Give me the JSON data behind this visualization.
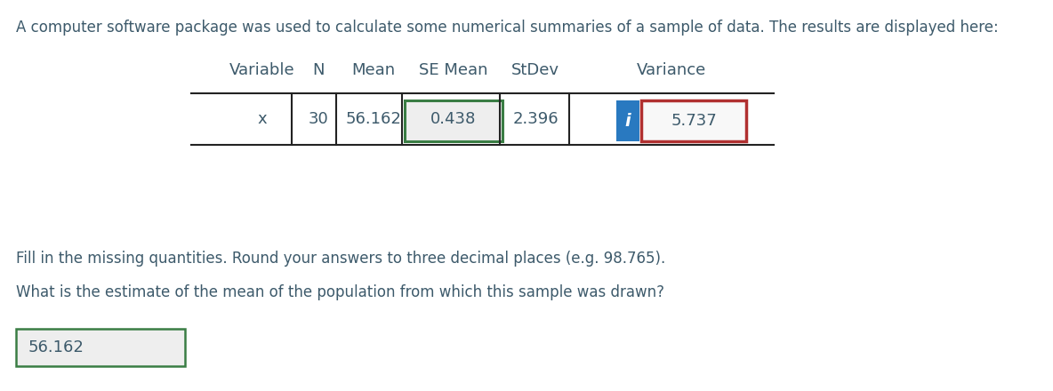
{
  "intro_text": "A computer software package was used to calculate some numerical summaries of a sample of data. The results are displayed here:",
  "table_headers": [
    "Variable",
    "N",
    "Mean",
    "SE Mean",
    "StDev",
    "Variance"
  ],
  "table_row": [
    "x",
    "30",
    "56.162",
    "0.438",
    "2.396",
    "5.737"
  ],
  "fill_text": "Fill in the missing quantities. Round your answers to three decimal places (e.g. 98.765).",
  "question_text": "What is the estimate of the mean of the population from which this sample was drawn?",
  "answer_text": "56.162",
  "bg_color": "#ffffff",
  "text_color": "#3d5a6b",
  "se_mean_box_color": "#3a7d44",
  "variance_box_color": "#b03030",
  "info_box_color": "#2979c0",
  "answer_box_color": "#3a7d44",
  "se_mean_box_bg": "#eeeeee",
  "variance_box_bg": "#f8f8f8",
  "answer_box_bg": "#eeeeee",
  "table_line_color": "#222222",
  "font_size_intro": 12,
  "font_size_table": 13,
  "font_size_body": 12
}
